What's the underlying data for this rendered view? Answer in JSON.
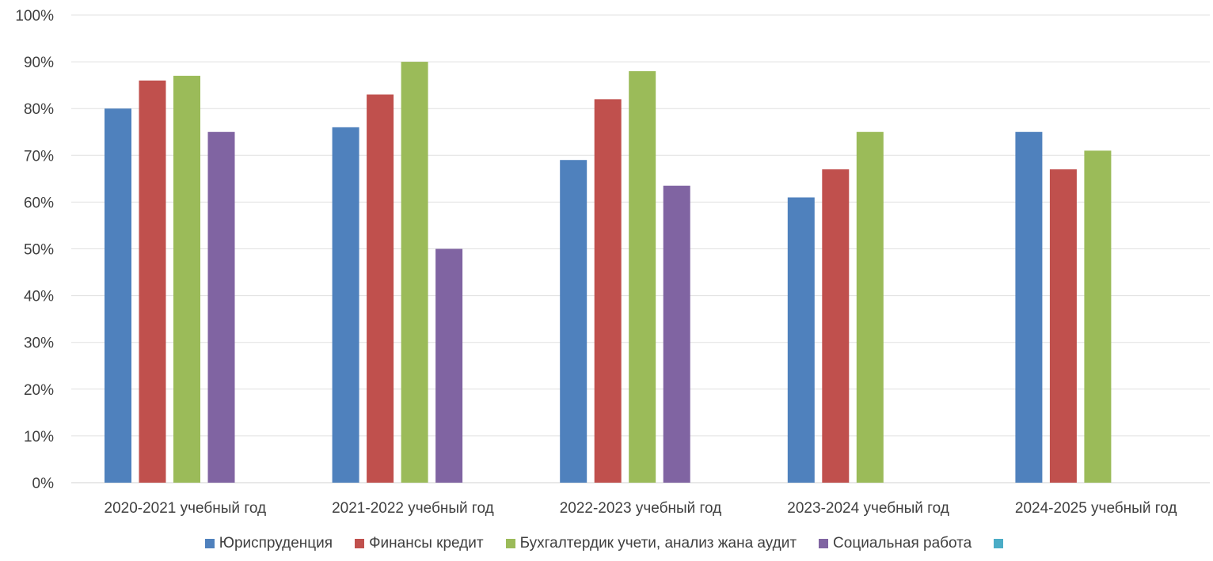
{
  "chart_data": {
    "type": "bar",
    "title": "",
    "xlabel": "",
    "ylabel": "",
    "ylim": [
      0,
      100
    ],
    "y_ticks": [
      "0%",
      "10%",
      "20%",
      "30%",
      "40%",
      "50%",
      "60%",
      "70%",
      "80%",
      "90%",
      "100%"
    ],
    "grid": true,
    "legend_position": "bottom",
    "categories": [
      "2020-2021 учебный год",
      "2021-2022 учебный год",
      "2022-2023 учебный год",
      "2023-2024 учебный год",
      "2024-2025 учебный год"
    ],
    "series": [
      {
        "name": "Юриспруденция",
        "color": "#4F81BD",
        "values": [
          80,
          76,
          69,
          61,
          75
        ]
      },
      {
        "name": "Финансы кредит",
        "color": "#C0504D",
        "values": [
          86,
          83,
          82,
          67,
          67
        ]
      },
      {
        "name": "Бухгалтердик учети, анализ жана аудит",
        "color": "#9BBB59",
        "values": [
          87,
          90,
          88,
          75,
          71
        ]
      },
      {
        "name": "Социальная работа",
        "color": "#8064A2",
        "values": [
          75,
          50,
          63.5,
          null,
          null
        ]
      },
      {
        "name": "",
        "color": "#4BACC6",
        "values": [
          null,
          null,
          null,
          null,
          null
        ]
      }
    ]
  }
}
